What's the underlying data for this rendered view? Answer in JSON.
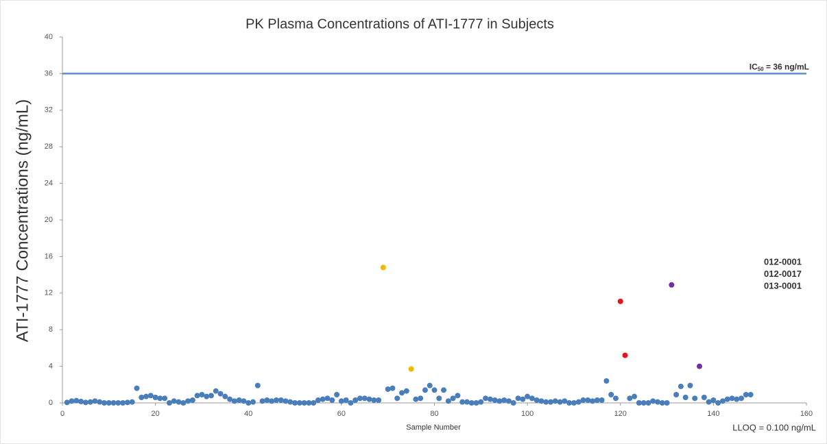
{
  "chart_data": {
    "type": "scatter",
    "title": "PK Plasma Concentrations of ATI-1777 in Subjects",
    "x_label": "Sample Number",
    "y_label": "ATI-1777 Concentrations (ng/mL)",
    "xlim": [
      0,
      160
    ],
    "xticks": [
      0,
      20,
      40,
      60,
      80,
      100,
      120,
      140,
      160
    ],
    "ylim": [
      0,
      40
    ],
    "yticks": [
      0,
      4,
      8,
      12,
      16,
      20,
      24,
      28,
      32,
      36,
      40
    ],
    "grid": false,
    "legend": "right",
    "hline": {
      "value": 36,
      "color": "#5b8fc9",
      "label_parts": [
        "IC",
        "50",
        " = 36 ng/mL"
      ]
    },
    "annotation": "LLOQ = 0.100 ng/mL",
    "series": [
      {
        "color": "#4a7ebb",
        "x": [
          1,
          2,
          3,
          4,
          5,
          6,
          7,
          8,
          9,
          10,
          11,
          12,
          13,
          14,
          15,
          16,
          17,
          18,
          19,
          20,
          21,
          22,
          23,
          24,
          25,
          26,
          27,
          28,
          29,
          30,
          31,
          32,
          33,
          34,
          35,
          36,
          37,
          38,
          39,
          40,
          41,
          42,
          43,
          44,
          45,
          46,
          47,
          48,
          49,
          50,
          51,
          52,
          53,
          54,
          55,
          56,
          57,
          58,
          59,
          60,
          61,
          62,
          63,
          64,
          65,
          66,
          67,
          68,
          70,
          71,
          72,
          73,
          74,
          76,
          77,
          78,
          79,
          80,
          81,
          82,
          83,
          84,
          85,
          86,
          87,
          88,
          89,
          90,
          91,
          92,
          93,
          94,
          95,
          96,
          97,
          98,
          99,
          100,
          101,
          102,
          103,
          104,
          105,
          106,
          107,
          108,
          109,
          110,
          111,
          112,
          113,
          114,
          115,
          116,
          117,
          118,
          119,
          122,
          123,
          124,
          125,
          126,
          127,
          128,
          129,
          130,
          132,
          133,
          134,
          135,
          136,
          138,
          139,
          140,
          141,
          142,
          143,
          144,
          145,
          146,
          147,
          148
        ],
        "values": [
          0.05,
          0.2,
          0.25,
          0.15,
          0.05,
          0.1,
          0.2,
          0.1,
          0,
          0,
          0,
          0,
          0,
          0.05,
          0.1,
          1.6,
          0.6,
          0.7,
          0.8,
          0.6,
          0.5,
          0.5,
          0,
          0.2,
          0.1,
          0,
          0.2,
          0.3,
          0.8,
          0.9,
          0.7,
          0.8,
          1.3,
          1.0,
          0.7,
          0.4,
          0.2,
          0.3,
          0.2,
          0,
          0.1,
          1.9,
          0.2,
          0.3,
          0.2,
          0.3,
          0.3,
          0.2,
          0.1,
          0,
          0,
          0,
          0,
          0,
          0.3,
          0.4,
          0.5,
          0.3,
          0.9,
          0.2,
          0.3,
          0,
          0.3,
          0.5,
          0.5,
          0.4,
          0.3,
          0.3,
          1.5,
          1.6,
          0.5,
          1.1,
          1.3,
          0.4,
          0.5,
          1.4,
          1.9,
          1.4,
          0.5,
          1.4,
          0.2,
          0.5,
          0.8,
          0.1,
          0.1,
          0,
          0,
          0.1,
          0.5,
          0.4,
          0.3,
          0.2,
          0.3,
          0.2,
          0,
          0.5,
          0.4,
          0.7,
          0.5,
          0.3,
          0.2,
          0.1,
          0.1,
          0.2,
          0.1,
          0.2,
          0,
          0,
          0.1,
          0.3,
          0.3,
          0.2,
          0.3,
          0.3,
          2.4,
          0.9,
          0.5,
          0.5,
          0.7,
          0,
          0,
          0,
          0.2,
          0.1,
          0,
          0,
          0.9,
          1.8,
          0.6,
          1.9,
          0.5,
          0.6,
          0.1,
          0.3,
          0,
          0.2,
          0.4,
          0.5,
          0.4,
          0.5,
          0.9,
          0.9
        ]
      },
      {
        "name": "012-0001",
        "color": "#f5b800",
        "x": [
          69,
          75
        ],
        "values": [
          14.8,
          3.7
        ]
      },
      {
        "name": "012-0017",
        "color": "#e8141a",
        "x": [
          120,
          121
        ],
        "values": [
          11.1,
          5.2
        ]
      },
      {
        "name": "013-0001",
        "color": "#7030a0",
        "x": [
          131,
          137
        ],
        "values": [
          12.9,
          4.0
        ]
      }
    ]
  }
}
